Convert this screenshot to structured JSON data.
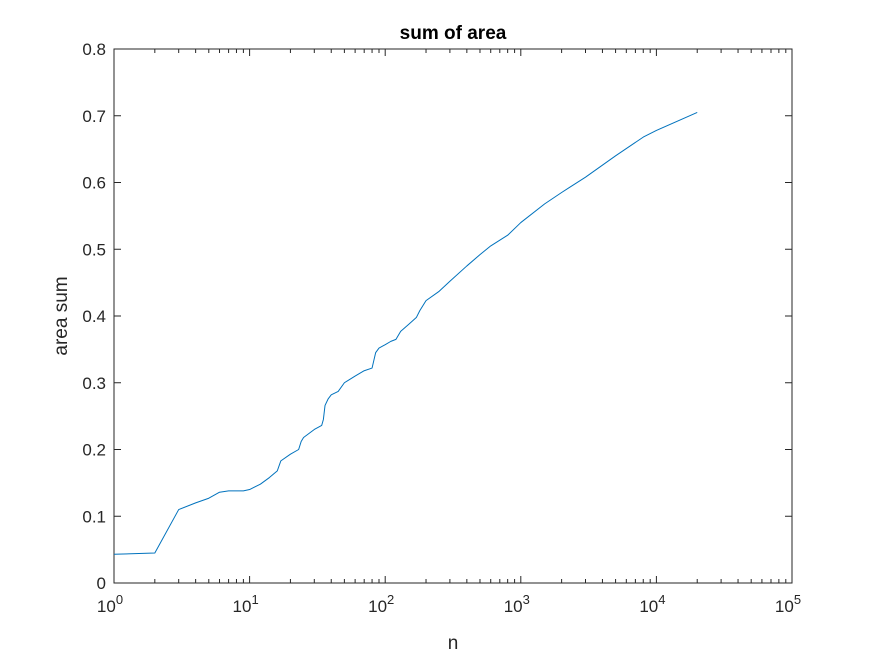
{
  "chart_data": {
    "type": "line",
    "title": "sum of area",
    "xlabel": "n",
    "ylabel": "area sum",
    "xscale": "log",
    "xlim": [
      1,
      100000
    ],
    "ylim": [
      0,
      0.8
    ],
    "xticks": [
      1,
      10,
      100,
      1000,
      10000,
      100000
    ],
    "xtick_labels": [
      {
        "base": "10",
        "exp": "0"
      },
      {
        "base": "10",
        "exp": "1"
      },
      {
        "base": "10",
        "exp": "2"
      },
      {
        "base": "10",
        "exp": "3"
      },
      {
        "base": "10",
        "exp": "4"
      },
      {
        "base": "10",
        "exp": "5"
      }
    ],
    "yticks": [
      0,
      0.1,
      0.2,
      0.3,
      0.4,
      0.5,
      0.6,
      0.7,
      0.8
    ],
    "ytick_labels": [
      "0",
      "0.1",
      "0.2",
      "0.3",
      "0.4",
      "0.5",
      "0.6",
      "0.7",
      "0.8"
    ],
    "grid": false,
    "box": true,
    "line_color": "#0072BD",
    "series": [
      {
        "x": [
          1,
          2,
          3,
          4,
          5,
          6,
          7,
          8,
          9,
          10,
          12,
          14,
          16,
          17,
          20,
          23,
          24,
          25,
          30,
          34,
          35,
          36,
          38,
          40,
          45,
          50,
          60,
          70,
          80,
          85,
          90,
          100,
          110,
          120,
          130,
          150,
          170,
          180,
          200,
          250,
          300,
          400,
          500,
          600,
          800,
          1000,
          1500,
          2000,
          2300,
          3000,
          5000,
          8000,
          10000,
          20000
        ],
        "y": [
          0.043,
          0.045,
          0.11,
          0.12,
          0.127,
          0.136,
          0.138,
          0.138,
          0.138,
          0.14,
          0.148,
          0.158,
          0.168,
          0.183,
          0.193,
          0.2,
          0.212,
          0.218,
          0.23,
          0.236,
          0.245,
          0.266,
          0.276,
          0.282,
          0.287,
          0.3,
          0.31,
          0.318,
          0.322,
          0.345,
          0.352,
          0.357,
          0.362,
          0.365,
          0.377,
          0.388,
          0.398,
          0.408,
          0.423,
          0.437,
          0.452,
          0.475,
          0.492,
          0.505,
          0.521,
          0.54,
          0.568,
          0.585,
          0.593,
          0.608,
          0.64,
          0.668,
          0.678,
          0.705
        ]
      }
    ]
  }
}
